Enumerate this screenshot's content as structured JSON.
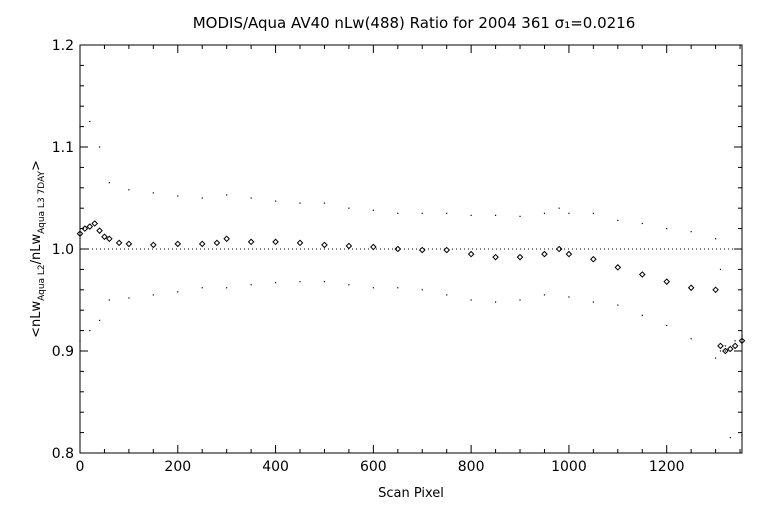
{
  "chart_data": {
    "type": "scatter",
    "title": "MODIS/Aqua AV40 nLw(488) Ratio for 2004 361 σ₁=0.0216",
    "xlabel": "Scan Pixel",
    "ylabel": {
      "prefix": "<nLw",
      "sub1": "Aqua L2",
      "mid": "/nLw",
      "sub2": "Aqua L3 7DAY",
      "suffix": ">"
    },
    "xlim": [
      0,
      1354
    ],
    "ylim": [
      0.8,
      1.2
    ],
    "xticks": [
      0,
      200,
      400,
      600,
      800,
      1000,
      1200
    ],
    "xtick_labels": [
      "0",
      "200",
      "400",
      "600",
      "800",
      "1000",
      "1200"
    ],
    "yticks": [
      0.8,
      0.9,
      1.0,
      1.1,
      1.2
    ],
    "ytick_labels": [
      "0.8",
      "0.9",
      "1.0",
      "1.1",
      "1.2"
    ],
    "reference_line": 1.0,
    "grid": false,
    "series": [
      {
        "role": "mean",
        "marker": "diamond",
        "points": [
          [
            0,
            1.015
          ],
          [
            10,
            1.02
          ],
          [
            20,
            1.022
          ],
          [
            30,
            1.025
          ],
          [
            40,
            1.018
          ],
          [
            50,
            1.012
          ],
          [
            60,
            1.01
          ],
          [
            80,
            1.006
          ],
          [
            100,
            1.005
          ],
          [
            150,
            1.004
          ],
          [
            200,
            1.005
          ],
          [
            250,
            1.005
          ],
          [
            280,
            1.006
          ],
          [
            300,
            1.01
          ],
          [
            350,
            1.007
          ],
          [
            400,
            1.007
          ],
          [
            450,
            1.006
          ],
          [
            500,
            1.004
          ],
          [
            550,
            1.003
          ],
          [
            600,
            1.002
          ],
          [
            650,
            1.0
          ],
          [
            700,
            0.999
          ],
          [
            750,
            0.999
          ],
          [
            800,
            0.995
          ],
          [
            850,
            0.992
          ],
          [
            900,
            0.992
          ],
          [
            950,
            0.995
          ],
          [
            980,
            1.0
          ],
          [
            1000,
            0.995
          ],
          [
            1050,
            0.99
          ],
          [
            1100,
            0.982
          ],
          [
            1150,
            0.975
          ],
          [
            1200,
            0.968
          ],
          [
            1250,
            0.962
          ],
          [
            1300,
            0.96
          ],
          [
            1310,
            0.905
          ],
          [
            1320,
            0.9
          ],
          [
            1330,
            0.902
          ],
          [
            1340,
            0.905
          ],
          [
            1354,
            0.91
          ]
        ]
      },
      {
        "role": "upper",
        "marker": "dot",
        "points": [
          [
            0,
            1.12
          ],
          [
            20,
            1.125
          ],
          [
            40,
            1.1
          ],
          [
            60,
            1.065
          ],
          [
            100,
            1.058
          ],
          [
            150,
            1.055
          ],
          [
            200,
            1.052
          ],
          [
            250,
            1.05
          ],
          [
            300,
            1.053
          ],
          [
            350,
            1.05
          ],
          [
            400,
            1.047
          ],
          [
            450,
            1.045
          ],
          [
            500,
            1.045
          ],
          [
            550,
            1.04
          ],
          [
            600,
            1.038
          ],
          [
            650,
            1.035
          ],
          [
            700,
            1.035
          ],
          [
            750,
            1.035
          ],
          [
            800,
            1.033
          ],
          [
            850,
            1.033
          ],
          [
            900,
            1.032
          ],
          [
            950,
            1.035
          ],
          [
            980,
            1.04
          ],
          [
            1000,
            1.035
          ],
          [
            1050,
            1.035
          ],
          [
            1100,
            1.028
          ],
          [
            1150,
            1.025
          ],
          [
            1200,
            1.02
          ],
          [
            1250,
            1.017
          ],
          [
            1300,
            1.01
          ],
          [
            1310,
            0.98
          ],
          [
            1320,
            0.9
          ],
          [
            1330,
            0.815
          ],
          [
            1354,
            0.817
          ]
        ]
      },
      {
        "role": "lower",
        "marker": "dot",
        "points": [
          [
            0,
            0.91
          ],
          [
            20,
            0.92
          ],
          [
            40,
            0.93
          ],
          [
            60,
            0.95
          ],
          [
            100,
            0.952
          ],
          [
            150,
            0.955
          ],
          [
            200,
            0.958
          ],
          [
            250,
            0.962
          ],
          [
            300,
            0.962
          ],
          [
            350,
            0.965
          ],
          [
            400,
            0.967
          ],
          [
            450,
            0.968
          ],
          [
            500,
            0.968
          ],
          [
            550,
            0.965
          ],
          [
            600,
            0.962
          ],
          [
            650,
            0.962
          ],
          [
            700,
            0.96
          ],
          [
            750,
            0.955
          ],
          [
            800,
            0.95
          ],
          [
            850,
            0.948
          ],
          [
            900,
            0.95
          ],
          [
            950,
            0.955
          ],
          [
            1000,
            0.953
          ],
          [
            1050,
            0.948
          ],
          [
            1100,
            0.945
          ],
          [
            1150,
            0.935
          ],
          [
            1200,
            0.925
          ],
          [
            1250,
            0.912
          ],
          [
            1300,
            0.893
          ],
          [
            1310,
            0.9
          ],
          [
            1320,
            0.905
          ],
          [
            1340,
            0.91
          ],
          [
            1354,
            0.915
          ]
        ]
      }
    ]
  }
}
